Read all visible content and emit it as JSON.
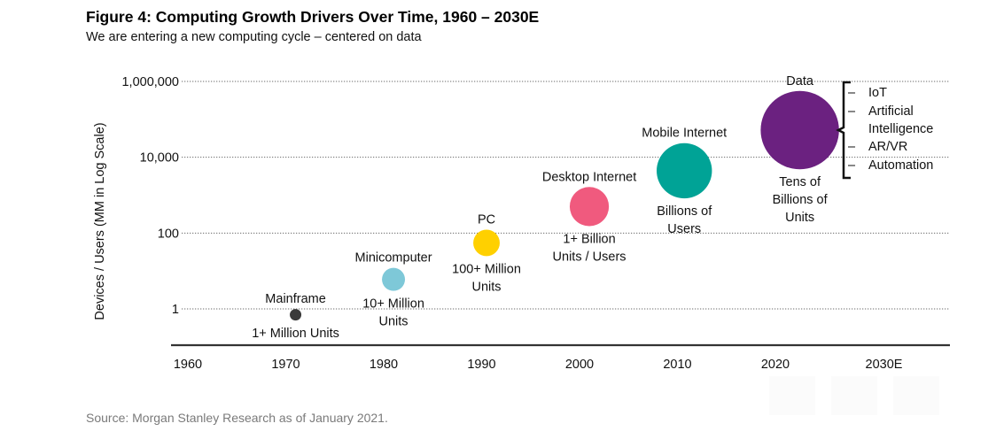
{
  "title": "Figure 4: Computing Growth Drivers Over Time, 1960 – 2030E",
  "subtitle": "We are entering a new computing cycle – centered on data",
  "source": "Source: Morgan Stanley Research as of January 2021.",
  "chart_data": {
    "type": "scatter",
    "subtype": "bubble",
    "title": "Figure 4: Computing Growth Drivers Over Time, 1960 – 2030E",
    "subtitle": "We are entering a new computing cycle – centered on data",
    "xlabel": "",
    "ylabel": "Devices / Users (MM in Log Scale)",
    "yscale": "log",
    "ylim": [
      0.4,
      1000000
    ],
    "xlim": [
      1960,
      2035
    ],
    "grid": true,
    "x_ticks": [
      {
        "value": 1960,
        "label": "1960"
      },
      {
        "value": 1970,
        "label": "1970"
      },
      {
        "value": 1980,
        "label": "1980"
      },
      {
        "value": 1990,
        "label": "1990"
      },
      {
        "value": 2000,
        "label": "2000"
      },
      {
        "value": 2010,
        "label": "2010"
      },
      {
        "value": 2020,
        "label": "2020"
      },
      {
        "value": 2030,
        "label": "2030E"
      }
    ],
    "y_ticks": [
      {
        "value": 1,
        "label": "1"
      },
      {
        "value": 100,
        "label": "100"
      },
      {
        "value": 10000,
        "label": "10,000"
      },
      {
        "value": 1000000,
        "label": "1,000,000"
      }
    ],
    "points": [
      {
        "name": "Mainframe",
        "x": 1971,
        "y": 0.7,
        "size": 1,
        "color": "#3a3a3a",
        "label_above": [
          "Mainframe"
        ],
        "label_below": [
          "1+ Million Units"
        ]
      },
      {
        "name": "Minicomputer",
        "x": 1981,
        "y": 6,
        "size": 2,
        "color": "#7ec8d8",
        "label_above": [
          "Minicomputer"
        ],
        "label_below": [
          "10+ Million",
          "Units"
        ]
      },
      {
        "name": "PC",
        "x": 1990.5,
        "y": 55,
        "size": 2.3,
        "color": "#ffd000",
        "label_above": [
          "PC"
        ],
        "label_below": [
          "100+ Million",
          "Units"
        ]
      },
      {
        "name": "Desktop Internet",
        "x": 2001,
        "y": 500,
        "size": 3.4,
        "color": "#f05a7e",
        "label_above": [
          "Desktop Internet"
        ],
        "label_below": [
          "1+ Billion",
          "Units / Users"
        ]
      },
      {
        "name": "Mobile Internet",
        "x": 2010.7,
        "y": 4400,
        "size": 4.8,
        "color": "#00a396",
        "label_above": [
          "Mobile Internet"
        ],
        "label_below": [
          "Billions of",
          "Users"
        ]
      },
      {
        "name": "Data",
        "x": 2022.5,
        "y": 52000,
        "size": 6.8,
        "color": "#6b2180",
        "label_above": [
          "Data"
        ],
        "label_below": [
          "Tens of",
          "Billions of",
          "Units"
        ]
      }
    ],
    "annotation": {
      "attached_to": "Data",
      "type": "bracket-list",
      "items": [
        "IoT",
        "Artificial Intelligence",
        "AR/VR",
        "Automation"
      ],
      "lines": [
        "IoT",
        "Artificial",
        "Intelligence",
        "AR/VR",
        "Automation"
      ],
      "bullet": "–"
    }
  }
}
